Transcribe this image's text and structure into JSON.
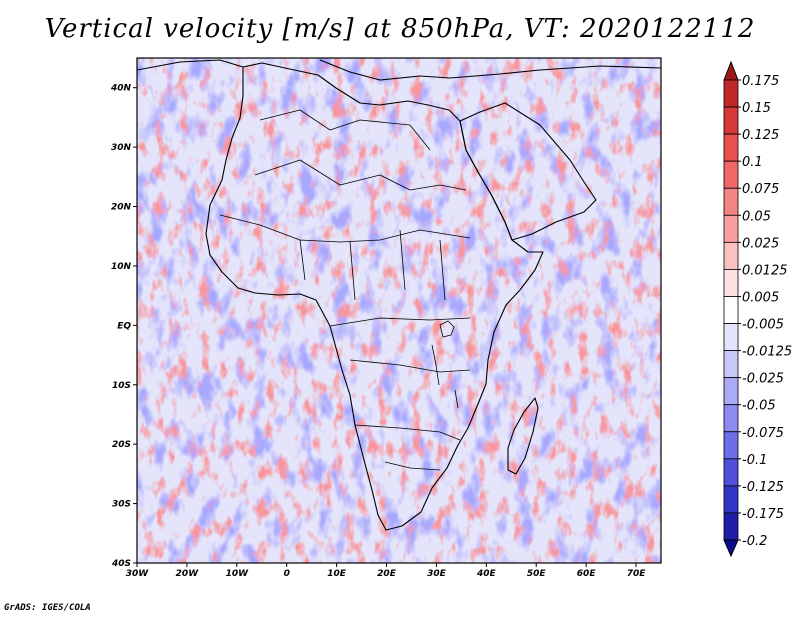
{
  "title": "Vertical velocity [m/s] at 850hPa, VT: 2020122112",
  "credit": "GrADS: IGES/COLA",
  "map": {
    "lon_range": [
      -30,
      75
    ],
    "lat_range": [
      -40,
      45
    ],
    "lon_ticks": [
      {
        "value": -30,
        "label": "30W"
      },
      {
        "value": -20,
        "label": "20W"
      },
      {
        "value": -10,
        "label": "10W"
      },
      {
        "value": 0,
        "label": "0"
      },
      {
        "value": 10,
        "label": "10E"
      },
      {
        "value": 20,
        "label": "20E"
      },
      {
        "value": 30,
        "label": "30E"
      },
      {
        "value": 40,
        "label": "40E"
      },
      {
        "value": 50,
        "label": "50E"
      },
      {
        "value": 60,
        "label": "60E"
      },
      {
        "value": 70,
        "label": "70E"
      }
    ],
    "lat_ticks": [
      {
        "value": 40,
        "label": "40N"
      },
      {
        "value": 30,
        "label": "30N"
      },
      {
        "value": 20,
        "label": "20N"
      },
      {
        "value": 10,
        "label": "10N"
      },
      {
        "value": 0,
        "label": "EQ"
      },
      {
        "value": -10,
        "label": "10S"
      },
      {
        "value": -20,
        "label": "20S"
      },
      {
        "value": -30,
        "label": "30S"
      },
      {
        "value": -40,
        "label": "40S"
      }
    ]
  },
  "colorbar": {
    "labels": [
      "0.175",
      "0.15",
      "0.125",
      "0.1",
      "0.075",
      "0.05",
      "0.025",
      "0.0125",
      "0.005",
      "-0.005",
      "-0.0125",
      "-0.025",
      "-0.05",
      "-0.075",
      "-0.1",
      "-0.125",
      "-0.175",
      "-0.2"
    ],
    "colors": [
      "#a01818",
      "#c02828",
      "#d83838",
      "#e85050",
      "#f06868",
      "#f48484",
      "#f8a0a0",
      "#fbc0c0",
      "#fde0e0",
      "#ffffff",
      "#e4e4fd",
      "#c8c8fb",
      "#aaaaf7",
      "#8c8cf0",
      "#6e6ee8",
      "#5050dc",
      "#3434c8",
      "#1e1eaa",
      "#0c0c90"
    ]
  }
}
